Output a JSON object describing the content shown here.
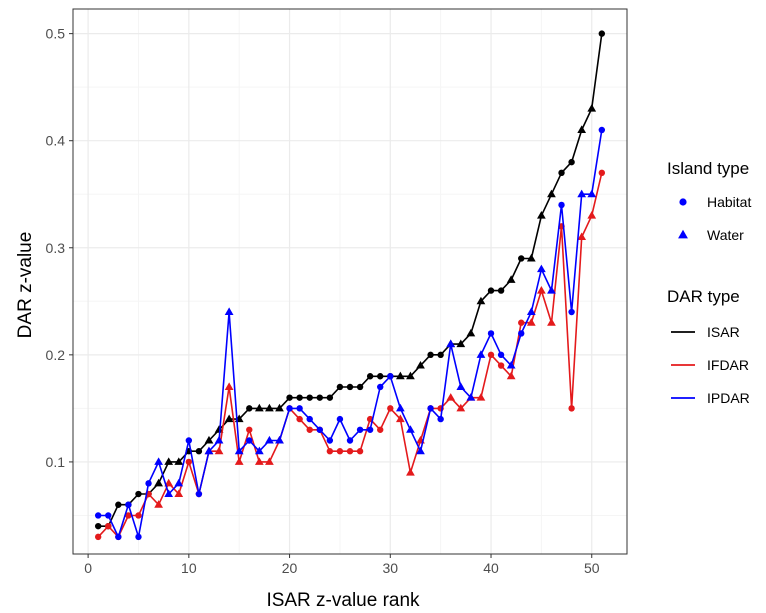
{
  "chart_data": {
    "type": "line",
    "xlabel": "ISAR z-value rank",
    "ylabel": "DAR z-value",
    "xlim": [
      -1.5,
      53.5
    ],
    "ylim": [
      0.014,
      0.523
    ],
    "x_ticks": [
      0,
      10,
      20,
      30,
      40,
      50
    ],
    "x_tick_labels": [
      "0",
      "10",
      "20",
      "30",
      "40",
      "50"
    ],
    "y_ticks": [
      0.1,
      0.2,
      0.3,
      0.4,
      0.5
    ],
    "y_tick_labels": [
      "0.1",
      "0.2",
      "0.3",
      "0.4",
      "0.5"
    ],
    "grid": true,
    "x": [
      1,
      2,
      3,
      4,
      5,
      6,
      7,
      8,
      9,
      10,
      11,
      12,
      13,
      14,
      15,
      16,
      17,
      18,
      19,
      20,
      21,
      22,
      23,
      24,
      25,
      26,
      27,
      28,
      29,
      30,
      31,
      32,
      33,
      34,
      35,
      36,
      37,
      38,
      39,
      40,
      41,
      42,
      43,
      44,
      45,
      46,
      47,
      48,
      49,
      50,
      51
    ],
    "island_type": [
      "Habitat",
      "Habitat",
      "Habitat",
      "Habitat",
      "Habitat",
      "Habitat",
      "Triangle",
      "Triangle",
      "Triangle",
      "Habitat",
      "Habitat",
      "Triangle",
      "Triangle",
      "Triangle",
      "Triangle",
      "Habitat",
      "Triangle",
      "Triangle",
      "Triangle",
      "Habitat",
      "Habitat",
      "Habitat",
      "Habitat",
      "Habitat",
      "Habitat",
      "Habitat",
      "Habitat",
      "Habitat",
      "Habitat",
      "Habitat",
      "Triangle",
      "Triangle",
      "Triangle",
      "Habitat",
      "Habitat",
      "Triangle",
      "Triangle",
      "Triangle",
      "Triangle",
      "Habitat",
      "Habitat",
      "Triangle",
      "Habitat",
      "Triangle",
      "Triangle",
      "Triangle",
      "Habitat",
      "Habitat",
      "Triangle",
      "Triangle",
      "Habitat"
    ],
    "series": [
      {
        "name": "ISAR",
        "color": "#000000",
        "values": [
          0.04,
          0.04,
          0.06,
          0.06,
          0.07,
          0.07,
          0.08,
          0.1,
          0.1,
          0.11,
          0.11,
          0.12,
          0.13,
          0.14,
          0.14,
          0.15,
          0.15,
          0.15,
          0.15,
          0.16,
          0.16,
          0.16,
          0.16,
          0.16,
          0.17,
          0.17,
          0.17,
          0.18,
          0.18,
          0.18,
          0.18,
          0.18,
          0.19,
          0.2,
          0.2,
          0.21,
          0.21,
          0.22,
          0.25,
          0.26,
          0.26,
          0.27,
          0.29,
          0.29,
          0.33,
          0.35,
          0.37,
          0.38,
          0.41,
          0.43,
          0.5
        ]
      },
      {
        "name": "IFDAR",
        "color": "#e41a1c",
        "values": [
          0.03,
          0.04,
          0.03,
          0.05,
          0.05,
          0.07,
          0.06,
          0.08,
          0.07,
          0.1,
          0.07,
          0.11,
          0.11,
          0.17,
          0.1,
          0.13,
          0.1,
          0.1,
          0.12,
          0.15,
          0.14,
          0.13,
          0.13,
          0.11,
          0.11,
          0.11,
          0.11,
          0.14,
          0.13,
          0.15,
          0.14,
          0.09,
          0.12,
          0.15,
          0.15,
          0.16,
          0.15,
          0.16,
          0.16,
          0.2,
          0.19,
          0.18,
          0.23,
          0.23,
          0.26,
          0.23,
          0.32,
          0.15,
          0.31,
          0.33,
          0.37
        ]
      },
      {
        "name": "IPDAR",
        "color": "#0000ff",
        "values": [
          0.05,
          0.05,
          0.03,
          0.06,
          0.03,
          0.08,
          0.1,
          0.07,
          0.08,
          0.12,
          0.07,
          0.11,
          0.12,
          0.24,
          0.11,
          0.12,
          0.11,
          0.12,
          0.12,
          0.15,
          0.15,
          0.14,
          0.13,
          0.12,
          0.14,
          0.12,
          0.13,
          0.13,
          0.17,
          0.18,
          0.15,
          0.13,
          0.11,
          0.15,
          0.14,
          0.21,
          0.17,
          0.16,
          0.2,
          0.22,
          0.2,
          0.19,
          0.22,
          0.24,
          0.28,
          0.26,
          0.34,
          0.24,
          0.35,
          0.35,
          0.41
        ]
      }
    ],
    "legend": {
      "placement": "right",
      "groups": [
        {
          "title": "Island type",
          "items": [
            {
              "label": "Habitat",
              "shape": "circle"
            },
            {
              "label": "Water",
              "shape": "triangle"
            }
          ]
        },
        {
          "title": "DAR type",
          "items": [
            {
              "label": "ISAR",
              "color": "#000000"
            },
            {
              "label": "IFDAR",
              "color": "#e41a1c"
            },
            {
              "label": "IPDAR",
              "color": "#0000ff"
            }
          ]
        }
      ]
    },
    "colors": {
      "panel_background": "#ffffff",
      "grid_major": "#ebebeb",
      "grid_minor": "#f5f5f5",
      "panel_border": "#333333",
      "legend_marker": "#0000ff"
    }
  }
}
